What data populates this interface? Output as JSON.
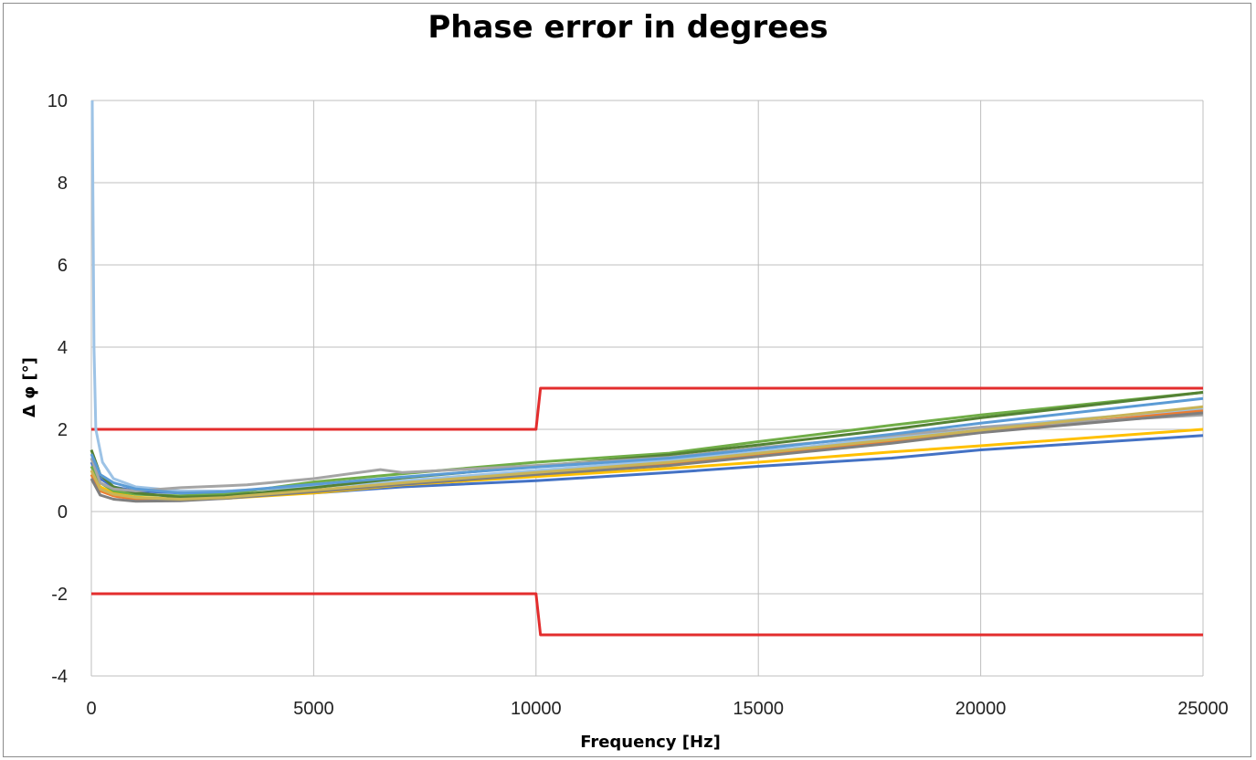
{
  "chart_data": {
    "type": "line",
    "title": "Phase error in degrees",
    "xlabel": "Frequency [Hz]",
    "ylabel": "Δ φ [°]",
    "xlim": [
      0,
      25000
    ],
    "ylim": [
      -4,
      10
    ],
    "x_ticks": [
      0,
      5000,
      10000,
      15000,
      20000,
      25000
    ],
    "y_ticks": [
      -4,
      -2,
      0,
      2,
      4,
      6,
      8,
      10
    ],
    "grid": true,
    "legend": "none",
    "series": [
      {
        "color": "#e32d2d",
        "points": [
          [
            0,
            2
          ],
          [
            10000,
            2
          ],
          [
            10100,
            3
          ],
          [
            25000,
            3
          ]
        ]
      },
      {
        "color": "#e32d2d",
        "points": [
          [
            0,
            -2
          ],
          [
            10000,
            -2
          ],
          [
            10100,
            -3
          ],
          [
            25000,
            -3
          ]
        ]
      },
      {
        "color": "#9dc3e6",
        "points": [
          [
            20,
            10
          ],
          [
            60,
            4
          ],
          [
            100,
            2
          ],
          [
            250,
            1.2
          ],
          [
            500,
            0.8
          ],
          [
            1000,
            0.6
          ],
          [
            2000,
            0.5
          ],
          [
            3000,
            0.5
          ],
          [
            5000,
            0.6
          ],
          [
            7000,
            0.75
          ],
          [
            10000,
            1.0
          ],
          [
            13000,
            1.25
          ],
          [
            15000,
            1.45
          ],
          [
            18000,
            1.8
          ],
          [
            20000,
            2.05
          ],
          [
            25000,
            2.5
          ]
        ]
      },
      {
        "color": "#4472c4",
        "points": [
          [
            0,
            1.2
          ],
          [
            200,
            0.8
          ],
          [
            500,
            0.6
          ],
          [
            1000,
            0.5
          ],
          [
            2000,
            0.45
          ],
          [
            3000,
            0.42
          ],
          [
            5000,
            0.45
          ],
          [
            7000,
            0.6
          ],
          [
            10000,
            0.75
          ],
          [
            13000,
            0.95
          ],
          [
            15000,
            1.1
          ],
          [
            18000,
            1.3
          ],
          [
            20000,
            1.5
          ],
          [
            25000,
            1.85
          ]
        ]
      },
      {
        "color": "#ffc000",
        "points": [
          [
            0,
            1.0
          ],
          [
            200,
            0.6
          ],
          [
            500,
            0.45
          ],
          [
            1000,
            0.35
          ],
          [
            2000,
            0.3
          ],
          [
            3000,
            0.32
          ],
          [
            5000,
            0.45
          ],
          [
            7000,
            0.65
          ],
          [
            10000,
            0.85
          ],
          [
            13000,
            1.05
          ],
          [
            15000,
            1.2
          ],
          [
            18000,
            1.45
          ],
          [
            20000,
            1.6
          ],
          [
            25000,
            2.0
          ]
        ]
      },
      {
        "color": "#70ad47",
        "points": [
          [
            0,
            1.1
          ],
          [
            200,
            0.7
          ],
          [
            500,
            0.5
          ],
          [
            1000,
            0.42
          ],
          [
            2000,
            0.38
          ],
          [
            3000,
            0.42
          ],
          [
            5000,
            0.72
          ],
          [
            7000,
            0.92
          ],
          [
            10000,
            1.2
          ],
          [
            13000,
            1.42
          ],
          [
            15000,
            1.7
          ],
          [
            18000,
            2.1
          ],
          [
            20000,
            2.35
          ],
          [
            25000,
            2.9
          ]
        ]
      },
      {
        "color": "#548235",
        "points": [
          [
            0,
            1.5
          ],
          [
            200,
            0.9
          ],
          [
            500,
            0.6
          ],
          [
            1000,
            0.45
          ],
          [
            2000,
            0.35
          ],
          [
            3000,
            0.38
          ],
          [
            5000,
            0.58
          ],
          [
            7000,
            0.82
          ],
          [
            10000,
            1.1
          ],
          [
            13000,
            1.38
          ],
          [
            15000,
            1.62
          ],
          [
            18000,
            2.0
          ],
          [
            20000,
            2.28
          ],
          [
            25000,
            2.9
          ]
        ]
      },
      {
        "color": "#ed7d31",
        "points": [
          [
            0,
            0.9
          ],
          [
            200,
            0.5
          ],
          [
            500,
            0.38
          ],
          [
            1000,
            0.3
          ],
          [
            2000,
            0.28
          ],
          [
            3000,
            0.33
          ],
          [
            5000,
            0.5
          ],
          [
            7000,
            0.68
          ],
          [
            10000,
            0.92
          ],
          [
            13000,
            1.16
          ],
          [
            15000,
            1.38
          ],
          [
            18000,
            1.7
          ],
          [
            20000,
            1.95
          ],
          [
            25000,
            2.45
          ]
        ]
      },
      {
        "color": "#a5a5a5",
        "points": [
          [
            0,
            1.3
          ],
          [
            200,
            0.7
          ],
          [
            500,
            0.55
          ],
          [
            1000,
            0.5
          ],
          [
            2000,
            0.58
          ],
          [
            3500,
            0.65
          ],
          [
            5000,
            0.8
          ],
          [
            6500,
            1.02
          ],
          [
            7000,
            0.95
          ],
          [
            10000,
            1.12
          ],
          [
            13000,
            1.32
          ],
          [
            15000,
            1.55
          ],
          [
            18000,
            1.85
          ],
          [
            20000,
            2.05
          ],
          [
            25000,
            2.35
          ]
        ]
      },
      {
        "color": "#7f7f7f",
        "points": [
          [
            0,
            0.8
          ],
          [
            200,
            0.4
          ],
          [
            500,
            0.3
          ],
          [
            1000,
            0.25
          ],
          [
            2000,
            0.26
          ],
          [
            3000,
            0.32
          ],
          [
            5000,
            0.48
          ],
          [
            7000,
            0.66
          ],
          [
            10000,
            0.9
          ],
          [
            13000,
            1.12
          ],
          [
            15000,
            1.34
          ],
          [
            18000,
            1.66
          ],
          [
            20000,
            1.92
          ],
          [
            25000,
            2.4
          ]
        ]
      },
      {
        "color": "#5b9bd5",
        "points": [
          [
            0,
            1.4
          ],
          [
            200,
            0.9
          ],
          [
            500,
            0.7
          ],
          [
            1000,
            0.55
          ],
          [
            2000,
            0.45
          ],
          [
            3000,
            0.48
          ],
          [
            5000,
            0.66
          ],
          [
            7000,
            0.84
          ],
          [
            10000,
            1.08
          ],
          [
            13000,
            1.3
          ],
          [
            15000,
            1.52
          ],
          [
            18000,
            1.88
          ],
          [
            20000,
            2.15
          ],
          [
            25000,
            2.75
          ]
        ]
      },
      {
        "color": "#c9b458",
        "points": [
          [
            0,
            1.0
          ],
          [
            200,
            0.55
          ],
          [
            500,
            0.42
          ],
          [
            1000,
            0.34
          ],
          [
            2000,
            0.3
          ],
          [
            3000,
            0.34
          ],
          [
            5000,
            0.52
          ],
          [
            7000,
            0.7
          ],
          [
            10000,
            0.95
          ],
          [
            13000,
            1.2
          ],
          [
            15000,
            1.42
          ],
          [
            18000,
            1.75
          ],
          [
            20000,
            1.98
          ],
          [
            25000,
            2.55
          ]
        ]
      }
    ]
  }
}
